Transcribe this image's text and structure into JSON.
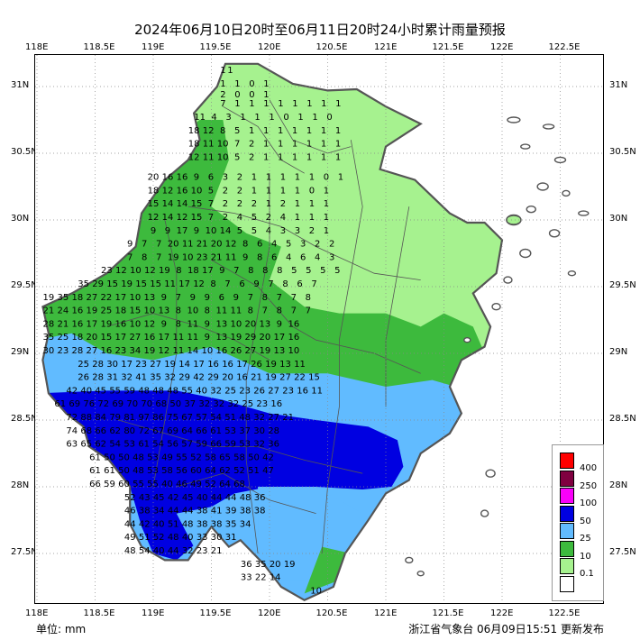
{
  "title": "2024年06月10日20时至06月11日20时24小时累计雨量预报",
  "unit_label": "单位:  mm",
  "issuer_label": "浙江省气象台 06月09日15:51 更新发布",
  "map": {
    "lon_range": [
      118.0,
      122.9
    ],
    "lat_range": [
      27.15,
      31.25
    ],
    "lon_ticks": [
      "118E",
      "118.5E",
      "119E",
      "119.5E",
      "120E",
      "120.5E",
      "121E",
      "121.5E",
      "122E",
      "122.5E"
    ],
    "lat_ticks": [
      "31N",
      "30.5N",
      "30N",
      "29.5N",
      "29N",
      "28.5N",
      "28N",
      "27.5N"
    ],
    "colors": {
      "band_0_1": "#ffffff",
      "band_1_10": "#a6f28f",
      "band_10_25": "#3dba3d",
      "band_25_50": "#61bbff",
      "band_50_100": "#0000e1",
      "band_100_250": "#fa00fa",
      "band_250_400": "#800040",
      "band_400": "#ff0000",
      "border": "#555555",
      "ocean": "#ffffff"
    }
  },
  "legend": {
    "labels": [
      "400",
      "250",
      "100",
      "50",
      "25",
      "10",
      "0.1"
    ],
    "colors": [
      "#ff0000",
      "#800040",
      "#fa00fa",
      "#0000e1",
      "#61bbff",
      "#3dba3d",
      "#a6f28f",
      "#ffffff"
    ]
  },
  "forecast_rows": [
    {
      "lat": 31.1,
      "lon0": 119.6,
      "step": 0.1,
      "v": [
        1,
        1
      ]
    },
    {
      "lat": 31.0,
      "lon0": 119.6,
      "step": 0.2,
      "v": [
        1,
        1,
        0,
        1
      ]
    },
    {
      "lat": 30.92,
      "lon0": 119.6,
      "step": 0.2,
      "v": [
        2,
        0,
        0,
        1
      ]
    },
    {
      "lat": 30.85,
      "lon0": 119.6,
      "step": 0.2,
      "v": [
        7,
        1,
        1,
        1,
        1,
        1,
        1,
        1,
        1
      ]
    },
    {
      "lat": 30.75,
      "lon0": 119.4,
      "step": 0.2,
      "v": [
        11,
        4,
        3,
        1,
        1,
        1,
        0,
        1,
        1,
        0
      ]
    },
    {
      "lat": 30.65,
      "lon0": 119.35,
      "step": 0.2,
      "v": [
        18,
        12,
        8,
        5,
        1,
        1,
        1,
        1,
        1,
        1,
        1
      ]
    },
    {
      "lat": 30.55,
      "lon0": 119.35,
      "step": 0.2,
      "v": [
        18,
        11,
        10,
        7,
        2,
        1,
        1,
        1,
        1,
        1,
        1
      ]
    },
    {
      "lat": 30.45,
      "lon0": 119.35,
      "step": 0.2,
      "v": [
        12,
        11,
        10,
        5,
        2,
        1,
        1,
        1,
        1,
        1,
        1
      ]
    },
    {
      "lat": 30.3,
      "lon0": 119.0,
      "step": 0.2,
      "v": [
        20,
        16,
        16,
        9,
        6,
        3,
        2,
        1,
        1,
        1,
        1,
        1,
        0,
        1
      ]
    },
    {
      "lat": 30.2,
      "lon0": 119.0,
      "step": 0.2,
      "v": [
        18,
        12,
        16,
        10,
        5,
        2,
        2,
        1,
        1,
        1,
        1,
        0,
        1
      ]
    },
    {
      "lat": 30.1,
      "lon0": 119.0,
      "step": 0.2,
      "v": [
        15,
        14,
        14,
        15,
        7,
        2,
        2,
        2,
        1,
        2,
        1,
        1,
        1
      ]
    },
    {
      "lat": 30.0,
      "lon0": 119.0,
      "step": 0.2,
      "v": [
        12,
        14,
        12,
        15,
        7,
        2,
        4,
        5,
        2,
        4,
        1,
        1,
        1
      ]
    },
    {
      "lat": 29.9,
      "lon0": 119.0,
      "step": 0.2,
      "v": [
        9,
        9,
        17,
        9,
        10,
        14,
        5,
        5,
        4,
        3,
        3,
        2,
        1
      ]
    },
    {
      "lat": 29.8,
      "lon0": 118.8,
      "step": 0.2,
      "v": [
        9,
        7,
        7,
        20,
        11,
        21,
        20,
        12,
        8,
        6,
        4,
        5,
        3,
        2,
        2
      ]
    },
    {
      "lat": 29.7,
      "lon0": 118.8,
      "step": 0.2,
      "v": [
        7,
        8,
        7,
        19,
        10,
        23,
        21,
        11,
        9,
        8,
        6,
        4,
        6,
        4,
        3
      ]
    },
    {
      "lat": 29.6,
      "lon0": 118.6,
      "step": 0.2,
      "v": [
        23,
        12,
        10,
        12,
        19,
        8,
        18,
        17,
        9,
        7,
        8,
        8,
        8,
        5,
        5,
        5,
        5
      ]
    },
    {
      "lat": 29.5,
      "lon0": 118.4,
      "step": 0.2,
      "v": [
        35,
        29,
        15,
        19,
        15,
        15,
        11,
        17,
        12,
        8,
        7,
        6,
        9,
        7,
        8,
        6,
        7
      ]
    },
    {
      "lat": 29.4,
      "lon0": 118.1,
      "step": 0.2,
      "v": [
        19,
        35,
        18,
        27,
        22,
        17,
        10,
        13,
        9,
        7,
        9,
        9,
        6,
        9,
        7,
        8,
        7,
        7,
        8
      ]
    },
    {
      "lat": 29.3,
      "lon0": 118.1,
      "step": 0.2,
      "v": [
        21,
        24,
        16,
        19,
        25,
        18,
        15,
        10,
        13,
        8,
        10,
        8,
        11,
        11,
        8,
        7,
        8,
        7,
        7
      ]
    },
    {
      "lat": 29.2,
      "lon0": 118.1,
      "step": 0.2,
      "v": [
        28,
        21,
        16,
        17,
        19,
        16,
        10,
        12,
        9,
        8,
        11,
        9,
        13,
        10,
        20,
        13,
        9,
        16
      ]
    },
    {
      "lat": 29.1,
      "lon0": 118.1,
      "step": 0.2,
      "v": [
        35,
        25,
        18,
        20,
        15,
        17,
        27,
        16,
        17,
        11,
        11,
        9,
        13,
        19,
        29,
        20,
        17,
        16
      ]
    },
    {
      "lat": 29.0,
      "lon0": 118.1,
      "step": 0.2,
      "v": [
        30,
        23,
        28,
        27,
        16,
        23,
        34,
        19,
        12,
        11,
        14,
        10,
        16,
        26,
        27,
        19,
        13,
        10
      ]
    },
    {
      "lat": 28.9,
      "lon0": 118.4,
      "step": 0.2,
      "v": [
        25,
        28,
        30,
        17,
        23,
        27,
        19,
        14,
        17,
        16,
        16,
        17,
        26,
        19,
        13,
        11
      ]
    },
    {
      "lat": 28.8,
      "lon0": 118.4,
      "step": 0.2,
      "v": [
        26,
        28,
        31,
        32,
        41,
        35,
        32,
        29,
        42,
        29,
        20,
        16,
        21,
        19,
        27,
        22,
        15
      ]
    },
    {
      "lat": 28.7,
      "lon0": 118.3,
      "step": 0.2,
      "v": [
        42,
        40,
        45,
        55,
        59,
        48,
        48,
        48,
        55,
        40,
        32,
        25,
        23,
        26,
        27,
        23,
        16,
        11
      ]
    },
    {
      "lat": 28.6,
      "lon0": 118.2,
      "step": 0.2,
      "v": [
        61,
        69,
        76,
        72,
        69,
        70,
        70,
        68,
        50,
        37,
        32,
        32,
        32,
        25,
        23,
        16
      ]
    },
    {
      "lat": 28.5,
      "lon0": 118.3,
      "step": 0.2,
      "v": [
        72,
        88,
        84,
        79,
        81,
        97,
        86,
        75,
        67,
        57,
        54,
        51,
        48,
        32,
        27,
        21
      ]
    },
    {
      "lat": 28.4,
      "lon0": 118.3,
      "step": 0.2,
      "v": [
        74,
        68,
        66,
        62,
        80,
        72,
        67,
        69,
        64,
        66,
        61,
        53,
        37,
        30,
        28
      ]
    },
    {
      "lat": 28.3,
      "lon0": 118.3,
      "step": 0.2,
      "v": [
        63,
        65,
        62,
        54,
        53,
        61,
        54,
        56,
        57,
        59,
        66,
        59,
        53,
        32,
        36
      ]
    },
    {
      "lat": 28.2,
      "lon0": 118.5,
      "step": 0.2,
      "v": [
        61,
        50,
        50,
        48,
        53,
        49,
        55,
        52,
        58,
        65,
        58,
        50,
        42
      ]
    },
    {
      "lat": 28.1,
      "lon0": 118.5,
      "step": 0.2,
      "v": [
        61,
        61,
        50,
        48,
        53,
        58,
        56,
        60,
        64,
        62,
        52,
        51,
        47
      ]
    },
    {
      "lat": 28.0,
      "lon0": 118.5,
      "step": 0.2,
      "v": [
        66,
        59,
        60,
        55,
        55,
        40,
        46,
        49,
        52,
        64,
        68
      ]
    },
    {
      "lat": 27.9,
      "lon0": 118.8,
      "step": 0.2,
      "v": [
        52,
        43,
        45,
        42,
        45,
        40,
        44,
        44,
        48,
        36
      ]
    },
    {
      "lat": 27.8,
      "lon0": 118.8,
      "step": 0.2,
      "v": [
        46,
        38,
        34,
        44,
        44,
        38,
        41,
        39,
        38,
        38
      ]
    },
    {
      "lat": 27.7,
      "lon0": 118.8,
      "step": 0.2,
      "v": [
        44,
        42,
        40,
        51,
        48,
        38,
        38,
        35,
        34
      ]
    },
    {
      "lat": 27.6,
      "lon0": 118.8,
      "step": 0.2,
      "v": [
        49,
        51,
        52,
        48,
        40,
        33,
        30,
        31
      ]
    },
    {
      "lat": 27.5,
      "lon0": 118.8,
      "step": 0.2,
      "v": [
        48,
        54,
        40,
        44,
        32,
        23,
        21
      ]
    },
    {
      "lat": 27.4,
      "lon0": 119.8,
      "step": 0.2,
      "v": [
        36,
        35,
        20,
        19
      ]
    },
    {
      "lat": 27.3,
      "lon0": 119.8,
      "step": 0.2,
      "v": [
        33,
        22,
        14
      ]
    },
    {
      "lat": 27.2,
      "lon0": 120.4,
      "step": 0.2,
      "v": [
        10
      ]
    }
  ]
}
